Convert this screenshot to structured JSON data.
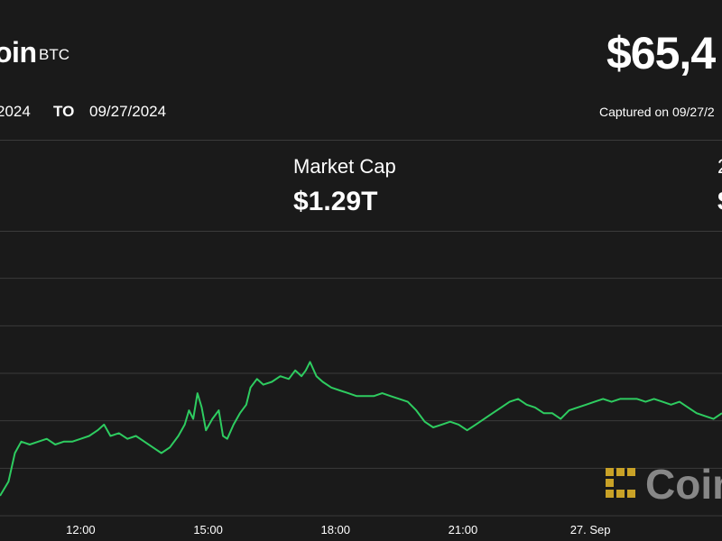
{
  "header": {
    "asset_name": "oin",
    "ticker": "BTC",
    "price": "$65,4",
    "range_from": "2024",
    "range_to_label": "TO",
    "range_to": "09/27/2024",
    "captured": "Captured on 09/27/2"
  },
  "stats": {
    "market_cap_label": "Market Cap",
    "market_cap_value": "$1.29T",
    "edge_label": "2",
    "edge_value": "$"
  },
  "watermark": {
    "text": "Coin",
    "logo_icon": "coindesk-logo-icon",
    "logo_color": "#c9a227"
  },
  "colors": {
    "background": "#1a1a1a",
    "line": "#2ecc60",
    "grid": "#3a3a3a",
    "tick_text": "#ffffff"
  },
  "chart_data": {
    "type": "line",
    "title": "",
    "xlabel": "",
    "ylabel": "",
    "x_ticks": [
      {
        "label": "12:00",
        "hour": 12
      },
      {
        "label": "15:00",
        "hour": 15
      },
      {
        "label": "18:00",
        "hour": 18
      },
      {
        "label": "21:00",
        "hour": 21
      },
      {
        "label": "27. Sep",
        "hour": 24
      }
    ],
    "x_range_hours": [
      10.1,
      27.1
    ],
    "y_range": [
      0,
      100
    ],
    "grid_lines": 6,
    "series": [
      {
        "values": [
          [
            10.1,
            7
          ],
          [
            10.3,
            12
          ],
          [
            10.45,
            22
          ],
          [
            10.6,
            26
          ],
          [
            10.8,
            25
          ],
          [
            11.0,
            26
          ],
          [
            11.2,
            27
          ],
          [
            11.4,
            25
          ],
          [
            11.6,
            26
          ],
          [
            11.8,
            26
          ],
          [
            12.0,
            27
          ],
          [
            12.2,
            28
          ],
          [
            12.4,
            30
          ],
          [
            12.55,
            32
          ],
          [
            12.7,
            28
          ],
          [
            12.9,
            29
          ],
          [
            13.1,
            27
          ],
          [
            13.3,
            28
          ],
          [
            13.5,
            26
          ],
          [
            13.7,
            24
          ],
          [
            13.9,
            22
          ],
          [
            14.1,
            24
          ],
          [
            14.3,
            28
          ],
          [
            14.45,
            32
          ],
          [
            14.55,
            37
          ],
          [
            14.65,
            34
          ],
          [
            14.75,
            43
          ],
          [
            14.85,
            38
          ],
          [
            14.95,
            30
          ],
          [
            15.1,
            34
          ],
          [
            15.25,
            37
          ],
          [
            15.35,
            28
          ],
          [
            15.45,
            27
          ],
          [
            15.6,
            32
          ],
          [
            15.75,
            36
          ],
          [
            15.9,
            39
          ],
          [
            16.0,
            45
          ],
          [
            16.15,
            48
          ],
          [
            16.3,
            46
          ],
          [
            16.5,
            47
          ],
          [
            16.7,
            49
          ],
          [
            16.9,
            48
          ],
          [
            17.05,
            51
          ],
          [
            17.2,
            49
          ],
          [
            17.3,
            51
          ],
          [
            17.4,
            54
          ],
          [
            17.55,
            49
          ],
          [
            17.7,
            47
          ],
          [
            17.9,
            45
          ],
          [
            18.1,
            44
          ],
          [
            18.3,
            43
          ],
          [
            18.5,
            42
          ],
          [
            18.7,
            42
          ],
          [
            18.9,
            42
          ],
          [
            19.1,
            43
          ],
          [
            19.3,
            42
          ],
          [
            19.5,
            41
          ],
          [
            19.7,
            40
          ],
          [
            19.9,
            37
          ],
          [
            20.1,
            33
          ],
          [
            20.3,
            31
          ],
          [
            20.5,
            32
          ],
          [
            20.7,
            33
          ],
          [
            20.9,
            32
          ],
          [
            21.1,
            30
          ],
          [
            21.3,
            32
          ],
          [
            21.5,
            34
          ],
          [
            21.7,
            36
          ],
          [
            21.9,
            38
          ],
          [
            22.1,
            40
          ],
          [
            22.3,
            41
          ],
          [
            22.5,
            39
          ],
          [
            22.7,
            38
          ],
          [
            22.9,
            36
          ],
          [
            23.1,
            36
          ],
          [
            23.3,
            34
          ],
          [
            23.5,
            37
          ],
          [
            23.7,
            38
          ],
          [
            23.9,
            39
          ],
          [
            24.1,
            40
          ],
          [
            24.3,
            41
          ],
          [
            24.5,
            40
          ],
          [
            24.7,
            41
          ],
          [
            24.9,
            41
          ],
          [
            25.1,
            41
          ],
          [
            25.3,
            40
          ],
          [
            25.5,
            41
          ],
          [
            25.7,
            40
          ],
          [
            25.9,
            39
          ],
          [
            26.1,
            40
          ],
          [
            26.3,
            38
          ],
          [
            26.5,
            36
          ],
          [
            26.7,
            35
          ],
          [
            26.9,
            34
          ],
          [
            27.1,
            36
          ]
        ]
      }
    ]
  }
}
